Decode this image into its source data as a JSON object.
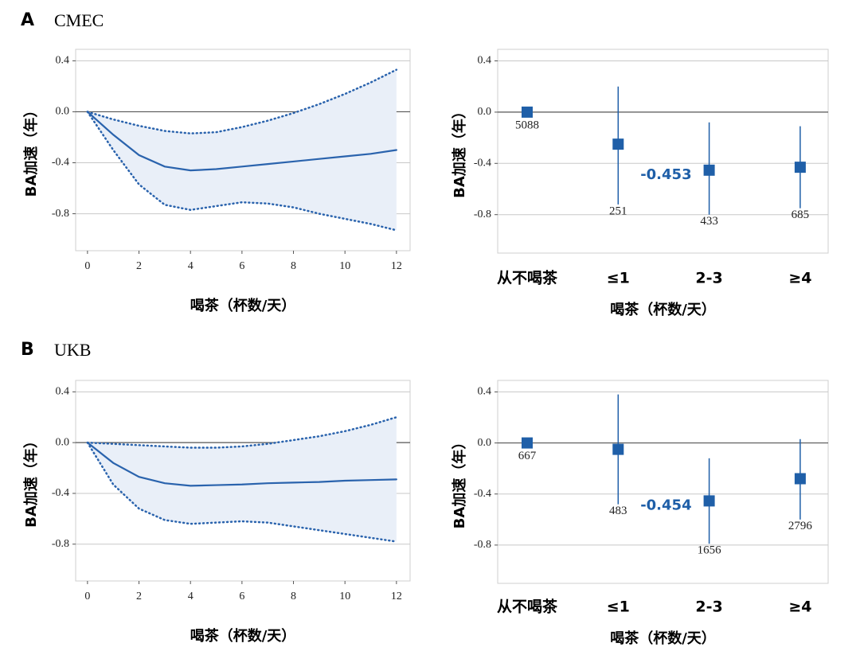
{
  "panels": [
    {
      "letter": "A",
      "title": "CMEC"
    },
    {
      "letter": "B",
      "title": "UKB"
    }
  ],
  "chart_data": [
    {
      "type": "line",
      "xlabel": "喝茶（杯数/天）",
      "ylabel": "BA加速（年）",
      "x": [
        0,
        1,
        2,
        3,
        4,
        5,
        6,
        7,
        8,
        9,
        10,
        11,
        12
      ],
      "series": [
        {
          "color": "#2a63ad",
          "style": "solid",
          "values": [
            0,
            -0.18,
            -0.34,
            -0.43,
            -0.46,
            -0.45,
            -0.43,
            -0.41,
            -0.39,
            -0.37,
            -0.35,
            -0.33,
            -0.3
          ]
        },
        {
          "color": "#2a63ad",
          "style": "dotted",
          "values": [
            0,
            -0.06,
            -0.11,
            -0.15,
            -0.17,
            -0.16,
            -0.12,
            -0.07,
            -0.01,
            0.06,
            0.14,
            0.23,
            0.33
          ]
        },
        {
          "color": "#2a63ad",
          "style": "dotted",
          "values": [
            0,
            -0.3,
            -0.57,
            -0.73,
            -0.77,
            -0.74,
            -0.71,
            -0.72,
            -0.75,
            -0.8,
            -0.84,
            -0.88,
            -0.93
          ]
        }
      ],
      "band_color": "#e9eff8",
      "xlim": [
        -0.46,
        12.53
      ],
      "xticks": [
        0,
        2,
        4,
        6,
        8,
        10,
        12
      ],
      "ylim": [
        -1.09,
        0.49
      ],
      "yticks": [
        0.4,
        {
          "value": 0,
          "label": "0.0"
        },
        -0.4,
        -0.8
      ],
      "grid": true
    },
    {
      "type": "errorbar",
      "xlabel": "喝茶（杯数/天）",
      "ylabel": "BA加速（年）",
      "categories": [
        "从不喝茶",
        "≤1",
        "2-3",
        "≥4"
      ],
      "values": [
        0,
        -0.25,
        -0.453,
        -0.43
      ],
      "value_labels": [
        null,
        null,
        "-0.453",
        null
      ],
      "upper": [
        null,
        0.2,
        -0.08,
        -0.11
      ],
      "lower": [
        null,
        -0.72,
        -0.8,
        -0.75
      ],
      "counts": [
        5088,
        251,
        433,
        685
      ],
      "color": "#1f5fa8",
      "ylim": [
        -1.1,
        0.49
      ],
      "yticks": [
        0.4,
        {
          "value": 0,
          "label": "0.0"
        },
        -0.4,
        -0.8
      ],
      "grid": true
    },
    {
      "type": "line",
      "xlabel": "喝茶（杯数/天）",
      "ylabel": "BA加速（年）",
      "x": [
        0,
        1,
        2,
        3,
        4,
        5,
        6,
        7,
        8,
        9,
        10,
        11,
        12
      ],
      "series": [
        {
          "color": "#2a63ad",
          "style": "solid",
          "values": [
            0,
            -0.16,
            -0.27,
            -0.32,
            -0.34,
            -0.335,
            -0.33,
            -0.32,
            -0.315,
            -0.31,
            -0.3,
            -0.295,
            -0.29
          ]
        },
        {
          "color": "#2a63ad",
          "style": "dotted",
          "values": [
            0,
            -0.01,
            -0.02,
            -0.03,
            -0.04,
            -0.04,
            -0.03,
            -0.01,
            0.02,
            0.05,
            0.09,
            0.14,
            0.2
          ]
        },
        {
          "color": "#2a63ad",
          "style": "dotted",
          "values": [
            0,
            -0.33,
            -0.52,
            -0.61,
            -0.64,
            -0.63,
            -0.62,
            -0.63,
            -0.66,
            -0.69,
            -0.72,
            -0.75,
            -0.78
          ]
        }
      ],
      "band_color": "#e9eff8",
      "xlim": [
        -0.46,
        12.53
      ],
      "xticks": [
        0,
        2,
        4,
        6,
        8,
        10,
        12
      ],
      "ylim": [
        -1.09,
        0.49
      ],
      "yticks": [
        0.4,
        {
          "value": 0,
          "label": "0.0"
        },
        -0.4,
        -0.8
      ],
      "grid": true
    },
    {
      "type": "errorbar",
      "xlabel": "喝茶（杯数/天）",
      "ylabel": "BA加速（年）",
      "categories": [
        "从不喝茶",
        "≤1",
        "2-3",
        "≥4"
      ],
      "values": [
        0,
        -0.05,
        -0.454,
        -0.28
      ],
      "value_labels": [
        null,
        null,
        "-0.454",
        null
      ],
      "upper": [
        null,
        0.38,
        -0.12,
        0.03
      ],
      "lower": [
        null,
        -0.48,
        -0.79,
        -0.6
      ],
      "counts": [
        667,
        483,
        1656,
        2796
      ],
      "color": "#1f5fa8",
      "ylim": [
        -1.1,
        0.49
      ],
      "yticks": [
        0.4,
        {
          "value": 0,
          "label": "0.0"
        },
        -0.4,
        -0.8
      ],
      "grid": true
    }
  ]
}
